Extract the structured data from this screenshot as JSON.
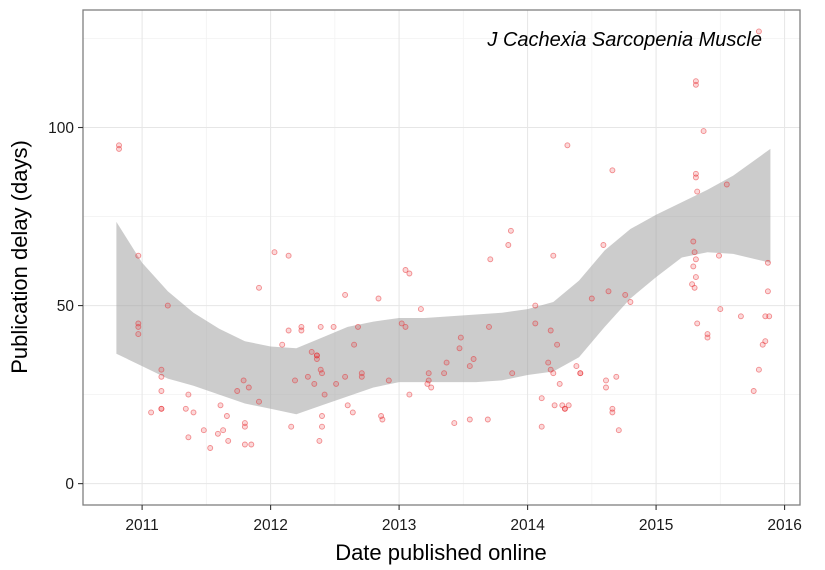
{
  "chart_data": {
    "type": "scatter",
    "annotation": "J Cachexia Sarcopenia Muscle",
    "xlabel": "Date published online",
    "ylabel": "Publication delay (days)",
    "x_ticks": [
      "2011",
      "2012",
      "2013",
      "2014",
      "2015",
      "2016"
    ],
    "y_ticks": [
      "0",
      "50",
      "100"
    ],
    "xlim": [
      2010.54,
      2016.12
    ],
    "ylim": [
      -6,
      133
    ],
    "grid": true,
    "points_color": "#e8282b",
    "band_color": "#999999",
    "series": [
      {
        "values": [
          [
            2010.82,
            95
          ],
          [
            2010.82,
            94
          ],
          [
            2010.97,
            64
          ],
          [
            2010.97,
            45
          ],
          [
            2010.97,
            44
          ],
          [
            2010.97,
            42
          ],
          [
            2011.07,
            20
          ],
          [
            2011.15,
            32
          ],
          [
            2011.15,
            30
          ],
          [
            2011.15,
            26
          ],
          [
            2011.15,
            21
          ],
          [
            2011.15,
            21
          ],
          [
            2011.2,
            50
          ],
          [
            2011.34,
            21
          ],
          [
            2011.36,
            25
          ],
          [
            2011.36,
            13
          ],
          [
            2011.4,
            20
          ],
          [
            2011.48,
            15
          ],
          [
            2011.53,
            10
          ],
          [
            2011.59,
            14
          ],
          [
            2011.61,
            22
          ],
          [
            2011.63,
            15
          ],
          [
            2011.66,
            19
          ],
          [
            2011.67,
            12
          ],
          [
            2011.74,
            26
          ],
          [
            2011.79,
            29
          ],
          [
            2011.8,
            17
          ],
          [
            2011.8,
            16
          ],
          [
            2011.8,
            11
          ],
          [
            2011.83,
            27
          ],
          [
            2011.85,
            11
          ],
          [
            2011.91,
            55
          ],
          [
            2011.91,
            23
          ],
          [
            2012.03,
            65
          ],
          [
            2012.09,
            39
          ],
          [
            2012.14,
            64
          ],
          [
            2012.14,
            43
          ],
          [
            2012.16,
            16
          ],
          [
            2012.19,
            29
          ],
          [
            2012.24,
            44
          ],
          [
            2012.24,
            43
          ],
          [
            2012.29,
            30
          ],
          [
            2012.32,
            37
          ],
          [
            2012.34,
            28
          ],
          [
            2012.36,
            35
          ],
          [
            2012.36,
            36
          ],
          [
            2012.36,
            36
          ],
          [
            2012.38,
            12
          ],
          [
            2012.39,
            44
          ],
          [
            2012.39,
            32
          ],
          [
            2012.4,
            31
          ],
          [
            2012.4,
            19
          ],
          [
            2012.4,
            16
          ],
          [
            2012.42,
            25
          ],
          [
            2012.49,
            44
          ],
          [
            2012.51,
            28
          ],
          [
            2012.58,
            53
          ],
          [
            2012.58,
            30
          ],
          [
            2012.6,
            22
          ],
          [
            2012.64,
            20
          ],
          [
            2012.65,
            39
          ],
          [
            2012.68,
            44
          ],
          [
            2012.71,
            30
          ],
          [
            2012.71,
            31
          ],
          [
            2012.84,
            52
          ],
          [
            2012.86,
            19
          ],
          [
            2012.87,
            18
          ],
          [
            2012.92,
            29
          ],
          [
            2013.02,
            45
          ],
          [
            2013.05,
            60
          ],
          [
            2013.05,
            44
          ],
          [
            2013.08,
            59
          ],
          [
            2013.08,
            25
          ],
          [
            2013.17,
            49
          ],
          [
            2013.22,
            28
          ],
          [
            2013.23,
            29
          ],
          [
            2013.23,
            31
          ],
          [
            2013.25,
            27
          ],
          [
            2013.35,
            31
          ],
          [
            2013.37,
            34
          ],
          [
            2013.43,
            17
          ],
          [
            2013.47,
            38
          ],
          [
            2013.48,
            41
          ],
          [
            2013.55,
            18
          ],
          [
            2013.55,
            33
          ],
          [
            2013.58,
            35
          ],
          [
            2013.69,
            18
          ],
          [
            2013.7,
            44
          ],
          [
            2013.71,
            63
          ],
          [
            2013.85,
            67
          ],
          [
            2013.87,
            71
          ],
          [
            2013.88,
            31
          ],
          [
            2014.06,
            45
          ],
          [
            2014.06,
            50
          ],
          [
            2014.11,
            16
          ],
          [
            2014.11,
            24
          ],
          [
            2014.16,
            34
          ],
          [
            2014.18,
            43
          ],
          [
            2014.18,
            32
          ],
          [
            2014.2,
            64
          ],
          [
            2014.2,
            31
          ],
          [
            2014.21,
            22
          ],
          [
            2014.23,
            39
          ],
          [
            2014.25,
            28
          ],
          [
            2014.27,
            22
          ],
          [
            2014.29,
            21
          ],
          [
            2014.29,
            21
          ],
          [
            2014.31,
            95
          ],
          [
            2014.32,
            22
          ],
          [
            2014.38,
            33
          ],
          [
            2014.41,
            31
          ],
          [
            2014.41,
            31
          ],
          [
            2014.5,
            52
          ],
          [
            2014.59,
            67
          ],
          [
            2014.61,
            29
          ],
          [
            2014.61,
            27
          ],
          [
            2014.63,
            54
          ],
          [
            2014.66,
            88
          ],
          [
            2014.66,
            21
          ],
          [
            2014.66,
            20
          ],
          [
            2014.69,
            30
          ],
          [
            2014.71,
            15
          ],
          [
            2014.76,
            53
          ],
          [
            2014.8,
            51
          ],
          [
            2015.28,
            56
          ],
          [
            2015.29,
            68
          ],
          [
            2015.29,
            61
          ],
          [
            2015.3,
            65
          ],
          [
            2015.3,
            55
          ],
          [
            2015.31,
            113
          ],
          [
            2015.31,
            112
          ],
          [
            2015.31,
            87
          ],
          [
            2015.31,
            86
          ],
          [
            2015.31,
            63
          ],
          [
            2015.31,
            58
          ],
          [
            2015.32,
            82
          ],
          [
            2015.32,
            45
          ],
          [
            2015.37,
            99
          ],
          [
            2015.4,
            42
          ],
          [
            2015.4,
            41
          ],
          [
            2015.49,
            64
          ],
          [
            2015.5,
            49
          ],
          [
            2015.55,
            84
          ],
          [
            2015.66,
            47
          ],
          [
            2015.76,
            26
          ],
          [
            2015.8,
            127
          ],
          [
            2015.8,
            32
          ],
          [
            2015.83,
            39
          ],
          [
            2015.85,
            47
          ],
          [
            2015.85,
            40
          ],
          [
            2015.87,
            62
          ],
          [
            2015.87,
            54
          ],
          [
            2015.88,
            47
          ]
        ]
      }
    ],
    "smooth": {
      "x": [
        2010.8,
        2011.0,
        2011.2,
        2011.4,
        2011.6,
        2011.8,
        2012.0,
        2012.2,
        2012.4,
        2012.6,
        2012.8,
        2013.0,
        2013.2,
        2013.4,
        2013.6,
        2013.8,
        2014.0,
        2014.2,
        2014.4,
        2014.6,
        2014.8,
        2015.0,
        2015.2,
        2015.4,
        2015.6,
        2015.89
      ],
      "upper": [
        73.5,
        62,
        54,
        48,
        43.5,
        40,
        38.5,
        38,
        41,
        44,
        45.5,
        46.5,
        46.5,
        47,
        47.5,
        48,
        49,
        51,
        57,
        65.5,
        71.5,
        75.5,
        79,
        82.5,
        86.5,
        94
      ],
      "lower": [
        36.5,
        33,
        29.5,
        27.5,
        25,
        22.5,
        21,
        19.5,
        22,
        24.5,
        27,
        28.5,
        28.5,
        28.5,
        28.5,
        29,
        30.5,
        31.5,
        35.5,
        44,
        52,
        58,
        63.5,
        65,
        64.5,
        62
      ]
    }
  }
}
